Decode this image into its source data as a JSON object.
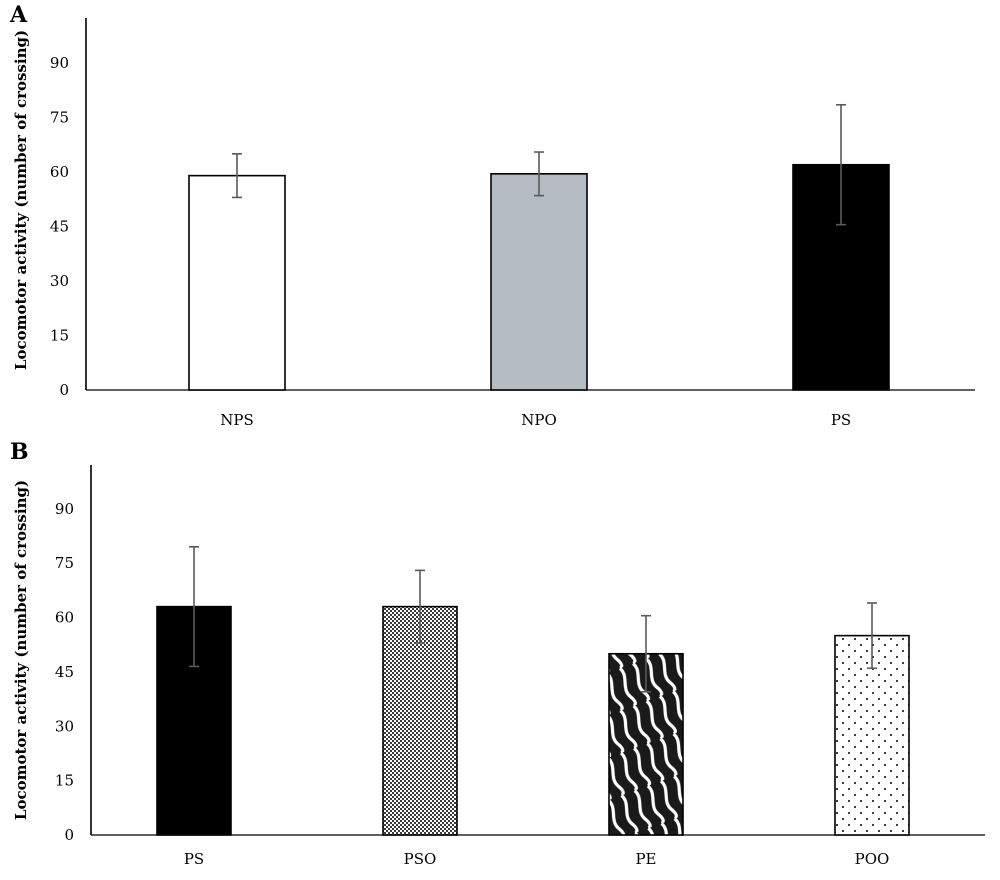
{
  "chart_data": [
    {
      "type": "bar",
      "panel": "A",
      "categories": [
        "NPS",
        "NPO",
        "PS"
      ],
      "values": [
        59,
        59.5,
        62
      ],
      "error": [
        6,
        6,
        16.5
      ],
      "fills": [
        "#ffffff",
        "#b3bcc2",
        "#000000"
      ],
      "patterns": [
        "none",
        "none",
        "none"
      ],
      "title": "",
      "xlabel": "",
      "ylabel": "Locomotor activity (number of crossing)",
      "ylim": [
        0,
        100
      ],
      "yticks": [
        0,
        15,
        30,
        45,
        60,
        75,
        90
      ],
      "grid": false
    },
    {
      "type": "bar",
      "panel": "B",
      "categories": [
        "PS",
        "PSO",
        "PE",
        "POO"
      ],
      "values": [
        63,
        63,
        50,
        55
      ],
      "error": [
        16.5,
        10,
        10.5,
        9
      ],
      "fills": [
        "#000000",
        "#ffffff",
        "#ffffff",
        "#ffffff"
      ],
      "patterns": [
        "none",
        "checker",
        "waves",
        "dots"
      ],
      "title": "",
      "xlabel": "",
      "ylabel": "Locomotor activity (number of crossing)",
      "ylim": [
        0,
        100
      ],
      "yticks": [
        0,
        15,
        30,
        45,
        60,
        75,
        90
      ],
      "grid": false
    }
  ],
  "colors": {
    "axis": "#000000",
    "error_bar": "#5a5a5a",
    "bar_edge": "#000000"
  }
}
